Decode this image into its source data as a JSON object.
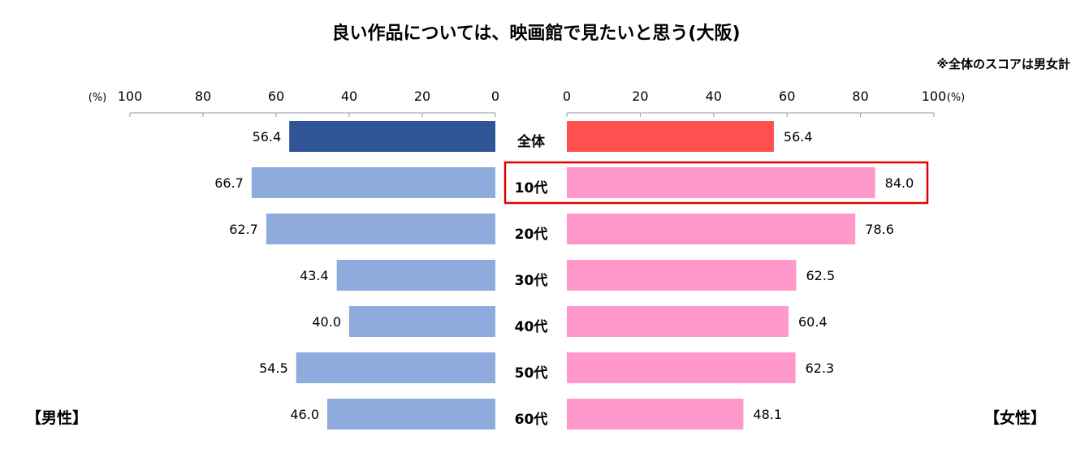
{
  "chart_data": {
    "type": "bar",
    "title": "良い作品については、映画館で見たいと思う(大阪)",
    "note": "※全体のスコアは男女計",
    "unit_label": "(%)",
    "categories": [
      "全体",
      "10代",
      "20代",
      "30代",
      "40代",
      "50代",
      "60代"
    ],
    "xlim": [
      0,
      100
    ],
    "ticks": [
      "0",
      "20",
      "40",
      "60",
      "80",
      "100"
    ],
    "left_side_label": "【男性】",
    "right_side_label": "【女性】",
    "highlighted_category": "10代",
    "series": [
      {
        "name": "男性",
        "values": [
          56.4,
          66.7,
          62.7,
          43.4,
          40.0,
          54.5,
          46.0
        ],
        "labels": [
          "56.4",
          "66.7",
          "62.7",
          "43.4",
          "40.0",
          "54.5",
          "46.0"
        ]
      },
      {
        "name": "女性",
        "values": [
          56.4,
          84.0,
          78.6,
          62.5,
          60.4,
          62.3,
          48.1
        ],
        "labels": [
          "56.4",
          "84.0",
          "78.6",
          "62.5",
          "60.4",
          "62.3",
          "48.1"
        ]
      }
    ],
    "colors": {
      "male": "#8faadc",
      "male_total": "#2f5597",
      "female": "#ff99cc",
      "female_total": "#ff5050",
      "highlight_box": "#e00000",
      "axis": "#999999"
    }
  }
}
